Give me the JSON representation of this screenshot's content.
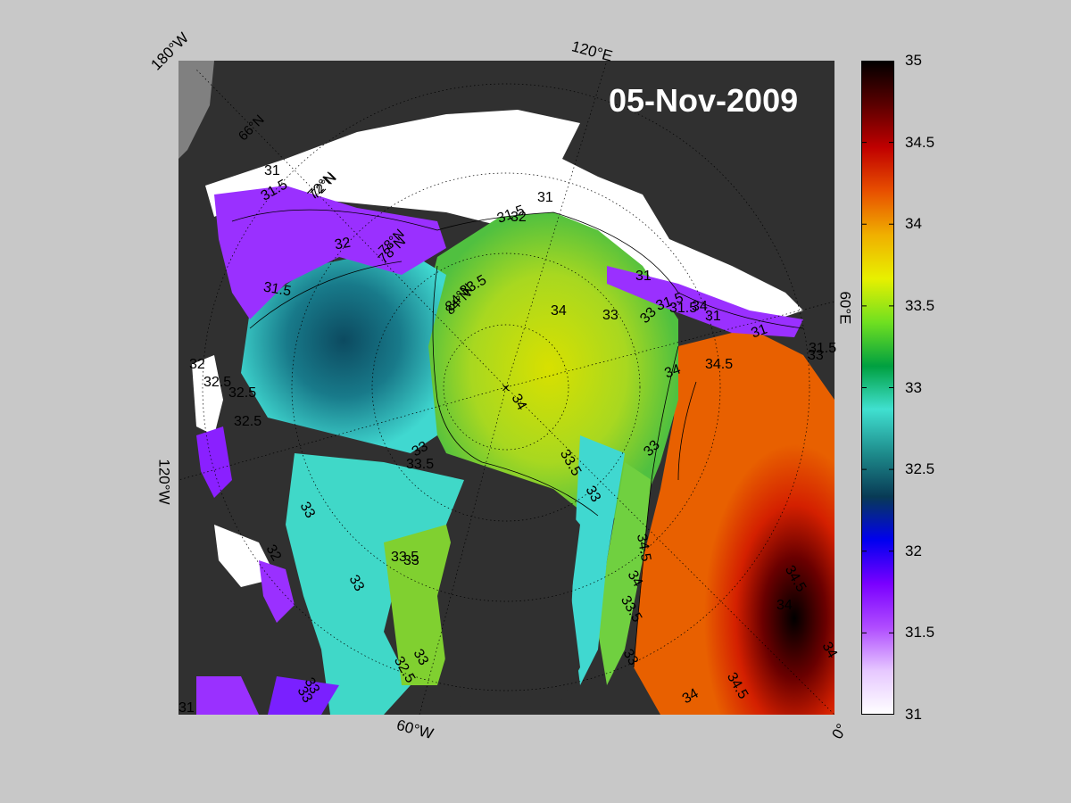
{
  "date_label": "05-Nov-2009",
  "lon_labels": [
    "180°W",
    "120°E",
    "60°E",
    "0°",
    "60°W",
    "120°W"
  ],
  "lat_labels": [
    "66°N",
    "72°N",
    "78°N",
    "84°N"
  ],
  "colorbar": {
    "ticks": [
      "35",
      "34.5",
      "34",
      "33.5",
      "33",
      "32.5",
      "32",
      "31.5",
      "31"
    ],
    "min": 31,
    "max": 35,
    "colors": [
      "#ffffff",
      "#e6c8ff",
      "#b04dff",
      "#7a00ff",
      "#0000f0",
      "#083a55",
      "#1e8c8c",
      "#40e0d0",
      "#00a040",
      "#70e020",
      "#e8f000",
      "#f0b000",
      "#e85000",
      "#c00000",
      "#5a0000",
      "#000000"
    ]
  },
  "contour_labels": [
    "31",
    "31.5",
    "72°N",
    "31",
    "31.5",
    "32",
    "78°N",
    "32",
    "31.5",
    "31",
    "31.5",
    "33",
    "84°N",
    "33.5",
    "34",
    "33",
    "34",
    "31.5",
    "31",
    "31",
    "31.5",
    "33",
    "34.5",
    "34",
    "32",
    "32.5",
    "32.5",
    "32.5",
    "33",
    "33.5",
    "34",
    "33.5",
    "33",
    "33",
    "32",
    "33",
    "33.5",
    "33",
    "34.5",
    "34",
    "33.5",
    "33",
    "32.5",
    "33",
    "33",
    "34.5",
    "34",
    "34.5",
    "34",
    "34",
    "33",
    "31",
    "33"
  ],
  "colors": {
    "land": "#303030",
    "ice": "#ffffff",
    "background": "#c8c8c8"
  }
}
